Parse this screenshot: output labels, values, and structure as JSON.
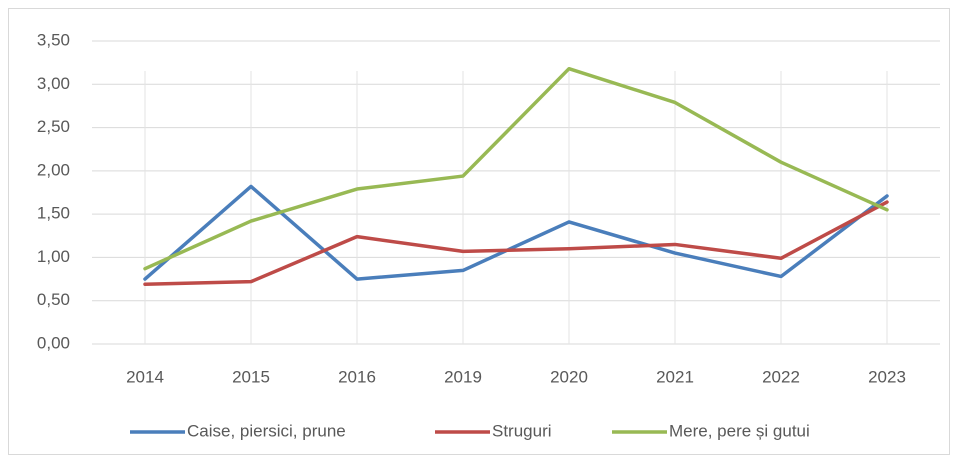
{
  "chart_data": {
    "type": "line",
    "categories": [
      "2014",
      "2015",
      "2016",
      "2019",
      "2020",
      "2021",
      "2022",
      "2023"
    ],
    "series": [
      {
        "name": "Caise, piersici, prune",
        "color": "#4a7ebb",
        "values": [
          0.75,
          1.82,
          0.75,
          0.85,
          1.41,
          1.05,
          0.78,
          1.71
        ]
      },
      {
        "name": "Struguri",
        "color": "#be4b48",
        "values": [
          0.69,
          0.72,
          1.24,
          1.07,
          1.1,
          1.15,
          0.99,
          1.64
        ]
      },
      {
        "name": "Mere, pere și gutui",
        "color": "#98b954",
        "values": [
          0.87,
          1.42,
          1.79,
          1.94,
          3.18,
          2.79,
          2.1,
          1.55
        ]
      }
    ],
    "ylim": [
      0,
      3.5
    ],
    "yticks": [
      {
        "value": 0,
        "label": "0,00"
      },
      {
        "value": 0.5,
        "label": "0,50"
      },
      {
        "value": 1,
        "label": "1,00"
      },
      {
        "value": 1.5,
        "label": "1,50"
      },
      {
        "value": 2,
        "label": "2,00"
      },
      {
        "value": 2.5,
        "label": "2,50"
      },
      {
        "value": 3,
        "label": "3,00"
      },
      {
        "value": 3.5,
        "label": "3,50"
      }
    ],
    "grid": true,
    "legend": "bottom"
  }
}
